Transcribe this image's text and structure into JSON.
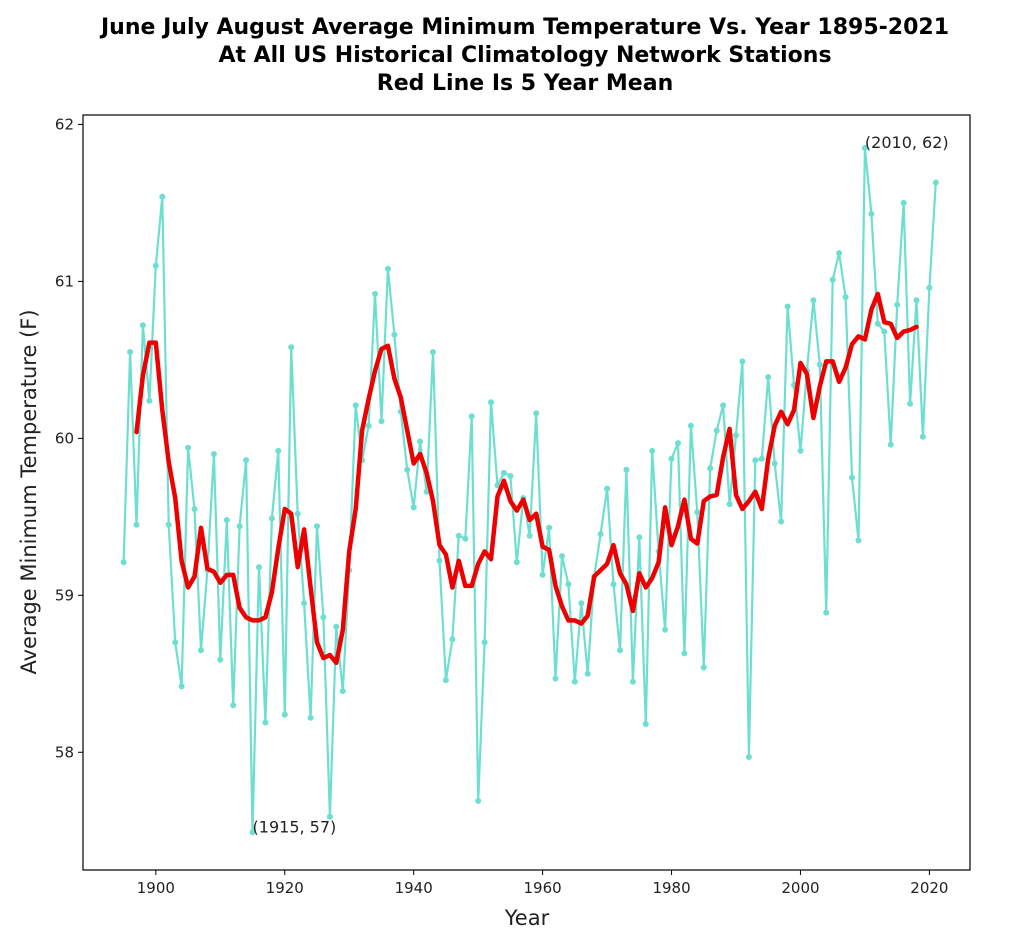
{
  "chart_data": {
    "type": "line",
    "title_lines": [
      "June July August Average Minimum Temperature Vs. Year 1895-2021",
      "At All US Historical Climatology Network Stations",
      "Red Line Is 5 Year Mean"
    ],
    "xlabel": "Year",
    "ylabel": "Average Minimum Temperature (F)",
    "xlim": [
      1888.7,
      2026.3
    ],
    "ylim": [
      57.25,
      62.06
    ],
    "xticks": [
      1900,
      1920,
      1940,
      1960,
      1980,
      2000,
      2020
    ],
    "yticks": [
      58,
      59,
      60,
      61,
      62
    ],
    "grid": false,
    "series": [
      {
        "name": "Annual JJA average minimum temperature",
        "color": "#6ddfd0",
        "marker": "dot",
        "x_start": 1895,
        "values": [
          59.21,
          60.55,
          59.45,
          60.72,
          60.24,
          61.1,
          61.54,
          59.45,
          58.7,
          58.42,
          59.94,
          59.55,
          58.65,
          59.16,
          59.9,
          58.59,
          59.48,
          58.3,
          59.44,
          59.86,
          57.49,
          59.18,
          58.19,
          59.49,
          59.92,
          58.24,
          60.58,
          59.52,
          58.95,
          58.22,
          59.44,
          58.86,
          57.59,
          58.8,
          58.39,
          59.16,
          60.21,
          59.86,
          60.08,
          60.92,
          60.11,
          61.08,
          60.66,
          60.17,
          59.8,
          59.56,
          59.98,
          59.66,
          60.55,
          59.22,
          58.46,
          58.72,
          59.38,
          59.36,
          60.14,
          57.69,
          58.7,
          60.23,
          59.7,
          59.78,
          59.76,
          59.21,
          59.62,
          59.38,
          60.16,
          59.13,
          59.43,
          58.47,
          59.25,
          59.07,
          58.45,
          58.95,
          58.5,
          59.12,
          59.39,
          59.68,
          59.07,
          58.65,
          59.8,
          58.45,
          59.37,
          58.18,
          59.92,
          59.28,
          58.78,
          59.87,
          59.97,
          58.63,
          60.08,
          59.53,
          58.54,
          59.81,
          60.05,
          60.21,
          59.58,
          60.02,
          60.49,
          57.97,
          59.86,
          59.87,
          60.39,
          59.84,
          59.47,
          60.84,
          60.34,
          59.92,
          60.43,
          60.88,
          60.47,
          58.89,
          61.01,
          61.18,
          60.9,
          59.75,
          59.35,
          61.85,
          61.43,
          60.73,
          60.68,
          59.96,
          60.85,
          61.5,
          60.22,
          60.88,
          60.01,
          60.96,
          61.63
        ]
      },
      {
        "name": "5 Year Mean",
        "color": "#ee0000",
        "marker": "none",
        "x_start": 1897,
        "values": [
          60.04,
          60.4,
          60.61,
          60.61,
          60.18,
          59.85,
          59.62,
          59.22,
          59.05,
          59.12,
          59.43,
          59.17,
          59.15,
          59.08,
          59.13,
          59.13,
          58.92,
          58.86,
          58.84,
          58.84,
          58.86,
          59.02,
          59.3,
          59.55,
          59.52,
          59.18,
          59.42,
          59.05,
          58.7,
          58.6,
          58.62,
          58.57,
          58.78,
          59.28,
          59.55,
          60.05,
          60.25,
          60.43,
          60.57,
          60.59,
          60.38,
          60.26,
          60.05,
          59.84,
          59.9,
          59.78,
          59.6,
          59.32,
          59.26,
          59.05,
          59.22,
          59.06,
          59.06,
          59.2,
          59.28,
          59.23,
          59.63,
          59.73,
          59.6,
          59.54,
          59.61,
          59.48,
          59.52,
          59.31,
          59.29,
          59.06,
          58.93,
          58.84,
          58.84,
          58.82,
          58.87,
          59.12,
          59.16,
          59.2,
          59.32,
          59.14,
          59.07,
          58.9,
          59.14,
          59.05,
          59.11,
          59.21,
          59.56,
          59.32,
          59.44,
          59.61,
          59.36,
          59.33,
          59.6,
          59.63,
          59.64,
          59.88,
          60.06,
          59.64,
          59.55,
          59.6,
          59.66,
          59.55,
          59.87,
          60.08,
          60.17,
          60.09,
          60.18,
          60.48,
          60.41,
          60.13,
          60.33,
          60.49,
          60.49,
          60.36,
          60.45,
          60.6,
          60.65,
          60.63,
          60.82,
          60.92,
          60.74,
          60.73,
          60.64,
          60.68,
          60.69,
          60.71
        ]
      }
    ],
    "annotations": [
      {
        "text": "(1915, 57)",
        "x": 1915,
        "y": 57.49
      },
      {
        "text": "(2010, 62)",
        "x": 2010,
        "y": 61.85
      }
    ]
  }
}
